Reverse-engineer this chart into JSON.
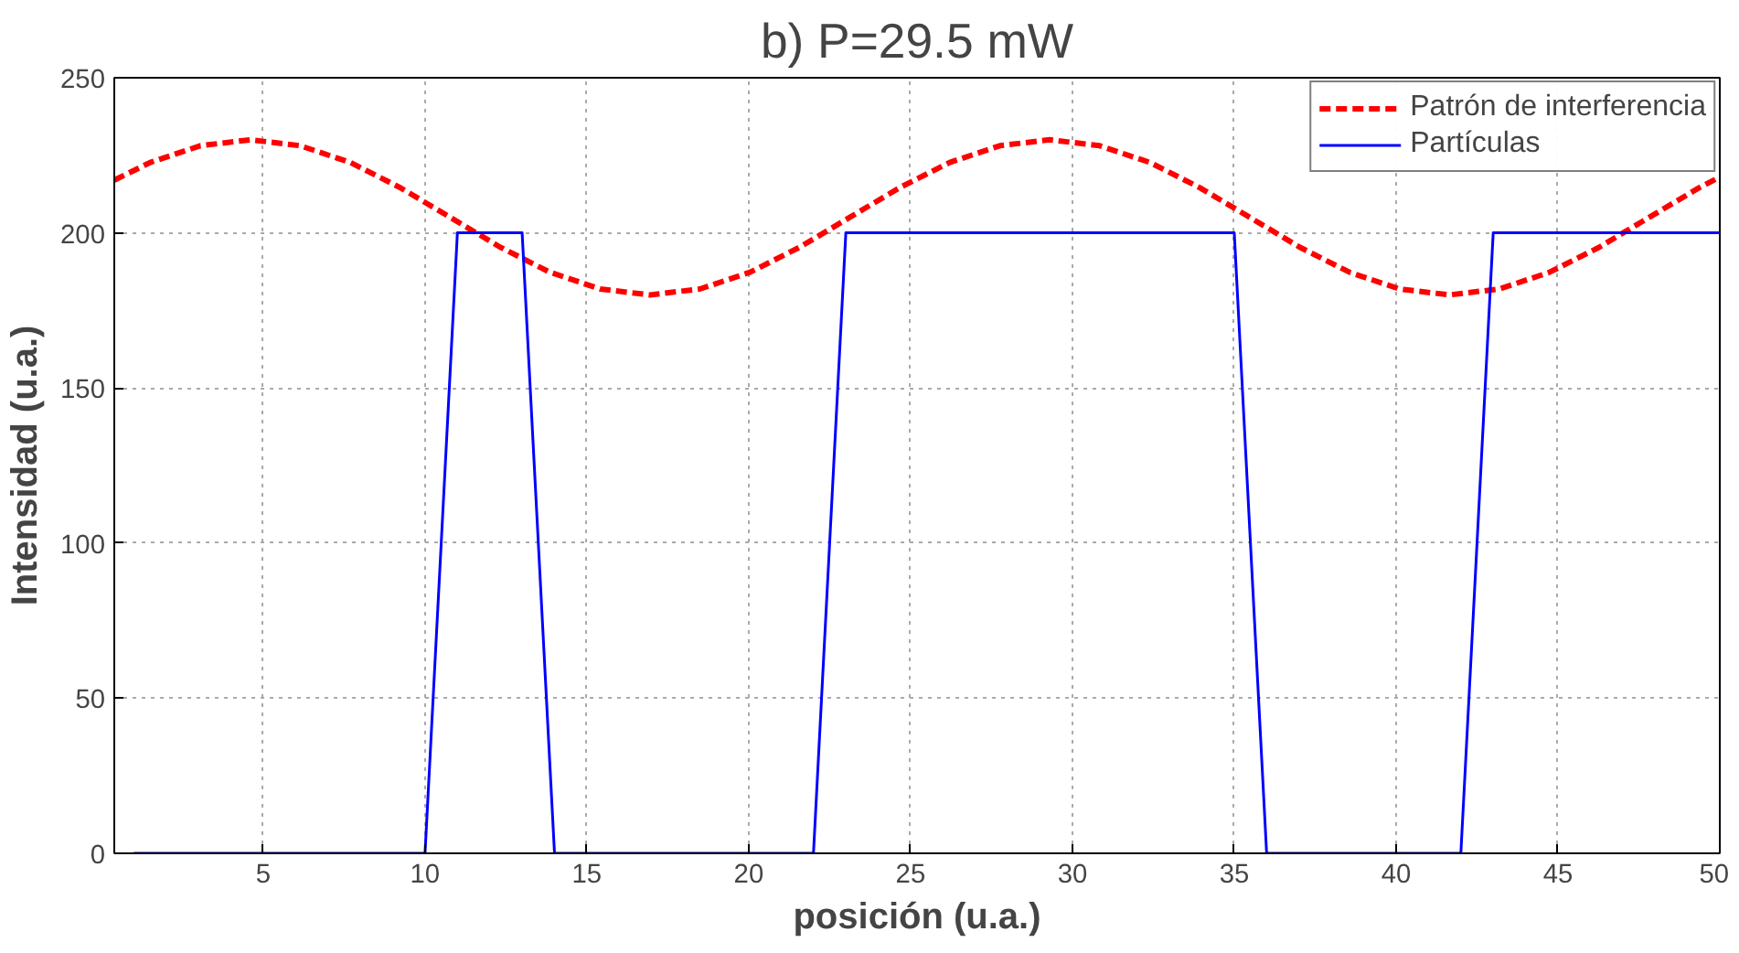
{
  "chart_data": {
    "type": "line",
    "title": "b) P=29.5 mW",
    "xlabel": "posición (u.a.)",
    "ylabel": "Intensidad (u.a.)",
    "xlim": [
      0.4,
      50
    ],
    "ylim": [
      0,
      250
    ],
    "xticks": [
      5,
      10,
      15,
      20,
      25,
      30,
      35,
      40,
      45,
      50
    ],
    "yticks": [
      0,
      50,
      100,
      150,
      200,
      250
    ],
    "grid": true,
    "legend": "top right",
    "series": [
      {
        "name": "Patrón de interferencia",
        "color": "#ff0000",
        "line_style": "dashed",
        "x": [
          0.4,
          1.51,
          3.06,
          4.6,
          6.14,
          7.69,
          9.23,
          10.78,
          12.32,
          13.86,
          15.41,
          16.95,
          18.49,
          20.04,
          21.58,
          23.12,
          24.67,
          26.21,
          27.76,
          29.3,
          30.84,
          32.39,
          33.93,
          35.48,
          37.02,
          38.56,
          40.11,
          41.65,
          43.19,
          44.74,
          46.28,
          47.82,
          49.37,
          50
        ],
        "values": [
          217,
          222.7,
          228.1,
          230,
          228.1,
          222.7,
          214.6,
          205,
          195.4,
          187.3,
          181.9,
          180,
          181.9,
          187.3,
          195.4,
          205,
          214.6,
          222.7,
          228.1,
          230,
          228.1,
          222.7,
          214.6,
          205,
          195.4,
          187.3,
          181.9,
          180,
          181.9,
          187.3,
          195.4,
          205,
          214.6,
          218
        ]
      },
      {
        "name": "Partículas",
        "color": "#0000ff",
        "line_style": "solid",
        "x": [
          1,
          10,
          11,
          13,
          14,
          22,
          23,
          35,
          36,
          42,
          43,
          50
        ],
        "values": [
          0,
          0,
          200,
          200,
          0,
          0,
          200,
          200,
          0,
          0,
          200,
          200
        ]
      }
    ]
  }
}
